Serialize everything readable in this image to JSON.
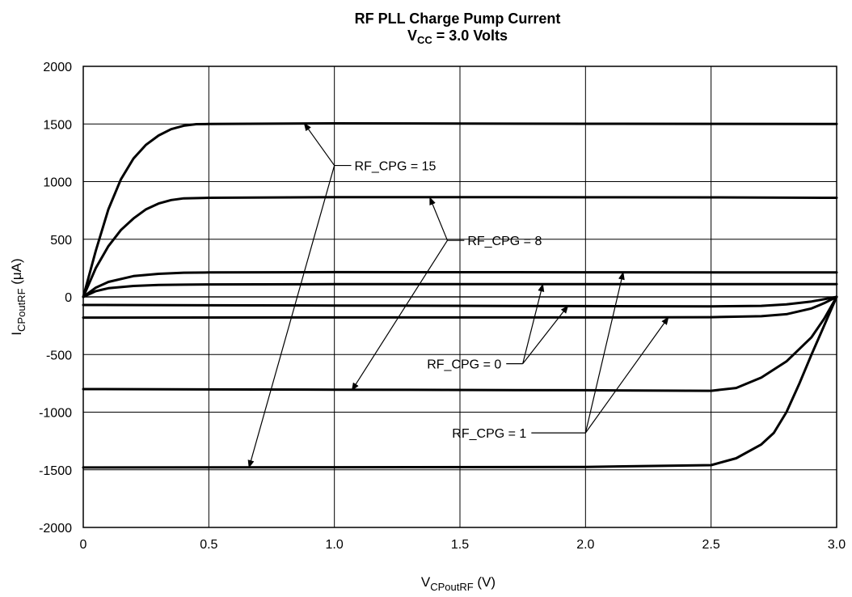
{
  "chart_data": {
    "type": "line",
    "title": "RF PLL Charge Pump Current",
    "subtitle": {
      "main": "V",
      "sub": "CC",
      "rest": " = 3.0 Volts"
    },
    "xlabel": {
      "main": "V",
      "sub": "CPoutRF",
      "rest": " (V)"
    },
    "ylabel": {
      "main": "I",
      "sub": "CPoutRF",
      "rest": " (μA)"
    },
    "xlim": [
      0,
      3.0
    ],
    "ylim": [
      -2000,
      2000
    ],
    "x_ticks": [
      0,
      0.5,
      1.0,
      1.5,
      2.0,
      2.5,
      3.0
    ],
    "x_tick_labels": [
      "0",
      "0.5",
      "1.0",
      "1.5",
      "2.0",
      "2.5",
      "3.0"
    ],
    "y_ticks": [
      2000,
      1500,
      1000,
      500,
      0,
      -500,
      -1000,
      -1500,
      -2000
    ],
    "y_tick_labels": [
      "2000",
      "1500",
      "1000",
      "500",
      "0",
      "-500",
      "-1000",
      "-1500",
      "-2000"
    ],
    "grid": true,
    "series": [
      {
        "curve": "source-15",
        "x": [
          0,
          0.05,
          0.1,
          0.15,
          0.2,
          0.25,
          0.3,
          0.35,
          0.4,
          0.45,
          0.5,
          1.0,
          1.5,
          2.0,
          2.5,
          3.0
        ],
        "y": [
          0,
          400,
          760,
          1020,
          1200,
          1320,
          1400,
          1455,
          1485,
          1498,
          1500,
          1505,
          1503,
          1502,
          1501,
          1500
        ]
      },
      {
        "curve": "source-8",
        "x": [
          0,
          0.05,
          0.1,
          0.15,
          0.2,
          0.25,
          0.3,
          0.35,
          0.4,
          0.5,
          1.0,
          1.5,
          2.0,
          2.5,
          3.0
        ],
        "y": [
          0,
          250,
          440,
          580,
          680,
          760,
          810,
          840,
          855,
          860,
          865,
          865,
          864,
          863,
          860
        ]
      },
      {
        "curve": "source-1",
        "x": [
          0,
          0.05,
          0.1,
          0.2,
          0.3,
          0.4,
          0.5,
          1.0,
          2.0,
          3.0
        ],
        "y": [
          0,
          80,
          130,
          180,
          200,
          210,
          212,
          215,
          213,
          212
        ]
      },
      {
        "curve": "source-0",
        "x": [
          0,
          0.05,
          0.1,
          0.2,
          0.3,
          0.4,
          0.5,
          1.0,
          2.0,
          3.0
        ],
        "y": [
          0,
          50,
          75,
          95,
          103,
          106,
          108,
          110,
          110,
          110
        ]
      },
      {
        "curve": "zero",
        "x": [
          0,
          3.0
        ],
        "y": [
          0,
          0
        ]
      },
      {
        "curve": "sink-0",
        "x": [
          0,
          1.0,
          2.0,
          2.5,
          2.7,
          2.8,
          2.9,
          2.95,
          3.0
        ],
        "y": [
          -70,
          -75,
          -80,
          -82,
          -78,
          -65,
          -40,
          -20,
          0
        ]
      },
      {
        "curve": "sink-1",
        "x": [
          0,
          1.0,
          2.0,
          2.5,
          2.7,
          2.8,
          2.9,
          2.95,
          3.0
        ],
        "y": [
          -180,
          -178,
          -178,
          -176,
          -168,
          -150,
          -100,
          -55,
          0
        ]
      },
      {
        "curve": "sink-8",
        "x": [
          0,
          1.0,
          2.0,
          2.5,
          2.6,
          2.7,
          2.8,
          2.9,
          2.95,
          3.0
        ],
        "y": [
          -800,
          -805,
          -810,
          -815,
          -790,
          -700,
          -560,
          -350,
          -190,
          0
        ]
      },
      {
        "curve": "sink-15",
        "x": [
          0,
          1.0,
          2.0,
          2.5,
          2.6,
          2.7,
          2.75,
          2.8,
          2.85,
          2.9,
          2.95,
          3.0
        ],
        "y": [
          -1480,
          -1478,
          -1475,
          -1460,
          -1400,
          -1280,
          -1180,
          -1000,
          -760,
          -500,
          -250,
          0
        ]
      }
    ],
    "annotations": [
      {
        "label": "RF_CPG = 15",
        "anchor": [
          1.0,
          1140
        ],
        "text_at": [
          1.08,
          1140
        ],
        "align": "start",
        "arrows_to": [
          [
            0.88,
            1505
          ],
          [
            0.66,
            -1480
          ]
        ]
      },
      {
        "label": "RF_CPG = 8",
        "anchor": [
          1.45,
          490
        ],
        "text_at": [
          1.53,
          490
        ],
        "align": "start",
        "arrows_to": [
          [
            1.38,
            862
          ],
          [
            1.07,
            -810
          ]
        ]
      },
      {
        "label": "RF_CPG = 0",
        "anchor": [
          1.75,
          -580
        ],
        "text_at": [
          1.665,
          -580
        ],
        "align": "end",
        "arrows_to": [
          [
            1.83,
            110
          ],
          [
            1.93,
            -78
          ]
        ]
      },
      {
        "label": "RF_CPG = 1",
        "anchor": [
          2.0,
          -1180
        ],
        "text_at": [
          1.765,
          -1180
        ],
        "align": "end",
        "arrows_to": [
          [
            2.15,
            213
          ],
          [
            2.33,
            -177
          ]
        ]
      }
    ]
  }
}
